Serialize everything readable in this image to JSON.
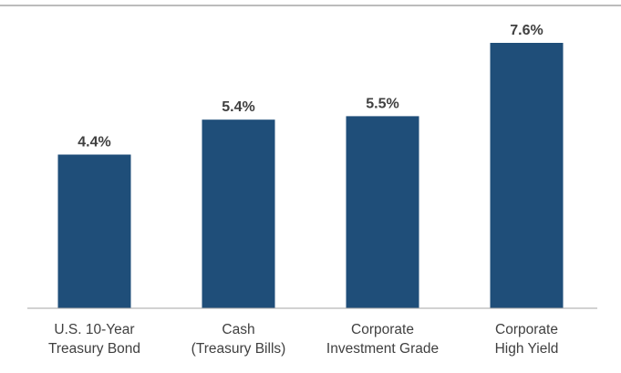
{
  "colors": {
    "bar": "#1f4e79",
    "axis": "#a6a6a6",
    "header_rule": "#a6a6a6",
    "text": "#404040"
  },
  "chart_data": {
    "type": "bar",
    "title": "",
    "xlabel": "",
    "ylabel": "",
    "ylim": [
      0,
      8.2
    ],
    "grid": false,
    "legend": "none",
    "categories": [
      [
        "U.S. 10-Year",
        "Treasury Bond"
      ],
      [
        "Cash",
        "(Treasury Bills)"
      ],
      [
        "Corporate",
        "Investment Grade"
      ],
      [
        "Corporate",
        "High Yield"
      ]
    ],
    "values": [
      4.4,
      5.4,
      5.5,
      7.6
    ],
    "data_labels": [
      "4.4%",
      "5.4%",
      "5.5%",
      "7.6%"
    ]
  }
}
